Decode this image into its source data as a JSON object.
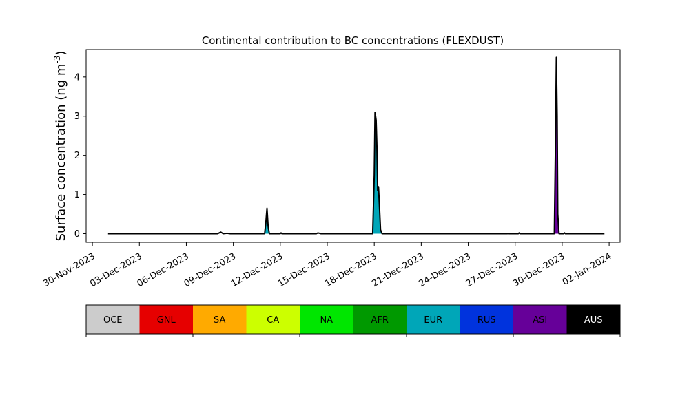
{
  "chart_data": {
    "type": "area",
    "title": "Continental contribution to BC concentrations (FLEXDUST)",
    "ylabel": "Surface concentration (ng m",
    "ylabel_sup": "-3",
    "ylabel_close": ")",
    "xlabel": "",
    "x_ticks": [
      "30-Nov-2023",
      "03-Dec-2023",
      "06-Dec-2023",
      "09-Dec-2023",
      "12-Dec-2023",
      "15-Dec-2023",
      "18-Dec-2023",
      "21-Dec-2023",
      "24-Dec-2023",
      "27-Dec-2023",
      "30-Dec-2023",
      "02-Jan-2024"
    ],
    "y_ticks": [
      0,
      1,
      2,
      3,
      4
    ],
    "x_range_days_from_2023_11_30": [
      -0.4,
      33.7
    ],
    "ylim": [
      -0.22,
      4.7
    ],
    "grid": false,
    "total_series": {
      "name": "AUS",
      "points": [
        [
          1.0,
          0
        ],
        [
          8.0,
          0
        ],
        [
          8.2,
          0.04
        ],
        [
          8.35,
          0
        ],
        [
          8.6,
          0.01
        ],
        [
          8.8,
          0
        ],
        [
          11.0,
          0
        ],
        [
          11.08,
          0.3
        ],
        [
          11.15,
          0.65
        ],
        [
          11.22,
          0.2
        ],
        [
          11.3,
          0
        ],
        [
          12.0,
          0
        ],
        [
          12.05,
          0.02
        ],
        [
          12.1,
          0
        ],
        [
          14.3,
          0
        ],
        [
          14.4,
          0.02
        ],
        [
          14.6,
          0
        ],
        [
          17.9,
          0
        ],
        [
          18.0,
          1.5
        ],
        [
          18.05,
          3.1
        ],
        [
          18.12,
          2.9
        ],
        [
          18.17,
          2.2
        ],
        [
          18.22,
          1.1
        ],
        [
          18.27,
          1.2
        ],
        [
          18.32,
          0.8
        ],
        [
          18.4,
          0.1
        ],
        [
          18.5,
          0
        ],
        [
          26.5,
          0
        ],
        [
          26.55,
          0.01
        ],
        [
          26.6,
          0
        ],
        [
          27.2,
          0
        ],
        [
          27.25,
          0.02
        ],
        [
          27.3,
          0
        ],
        [
          29.5,
          0
        ],
        [
          29.58,
          2.5
        ],
        [
          29.63,
          4.5
        ],
        [
          29.68,
          3.0
        ],
        [
          29.72,
          0.5
        ],
        [
          29.8,
          0
        ],
        [
          30.1,
          0
        ],
        [
          30.15,
          0.02
        ],
        [
          30.2,
          0
        ],
        [
          32.7,
          0
        ]
      ]
    },
    "region_fills": [
      {
        "region": "EUR",
        "points": [
          [
            11.0,
            0
          ],
          [
            11.08,
            0.28
          ],
          [
            11.15,
            0.6
          ],
          [
            11.22,
            0.18
          ],
          [
            11.3,
            0
          ]
        ]
      },
      {
        "region": "EUR",
        "points": [
          [
            17.9,
            0
          ],
          [
            18.0,
            1.45
          ],
          [
            18.05,
            3.05
          ],
          [
            18.12,
            2.85
          ],
          [
            18.17,
            2.15
          ],
          [
            18.22,
            1.05
          ],
          [
            18.27,
            1.15
          ],
          [
            18.32,
            0.75
          ],
          [
            18.4,
            0.08
          ],
          [
            18.5,
            0
          ]
        ]
      },
      {
        "region": "ASI",
        "points": [
          [
            29.5,
            0
          ],
          [
            29.58,
            2.45
          ],
          [
            29.63,
            4.4
          ],
          [
            29.68,
            2.9
          ],
          [
            29.72,
            0.45
          ],
          [
            29.8,
            0
          ]
        ]
      }
    ],
    "legend": [
      {
        "label": "OCE",
        "color": "#cccccc",
        "text_color": "#000000"
      },
      {
        "label": "GNL",
        "color": "#e60000",
        "text_color": "#000000"
      },
      {
        "label": "SA",
        "color": "#ffaa00",
        "text_color": "#000000"
      },
      {
        "label": "CA",
        "color": "#ccff00",
        "text_color": "#000000"
      },
      {
        "label": "NA",
        "color": "#00e600",
        "text_color": "#000000"
      },
      {
        "label": "AFR",
        "color": "#009900",
        "text_color": "#000000"
      },
      {
        "label": "EUR",
        "color": "#00a6b8",
        "text_color": "#000000"
      },
      {
        "label": "RUS",
        "color": "#0033dd",
        "text_color": "#000000"
      },
      {
        "label": "ASI",
        "color": "#660099",
        "text_color": "#000000"
      },
      {
        "label": "AUS",
        "color": "#000000",
        "text_color": "#ffffff"
      }
    ],
    "legend_placement": "bottom"
  }
}
